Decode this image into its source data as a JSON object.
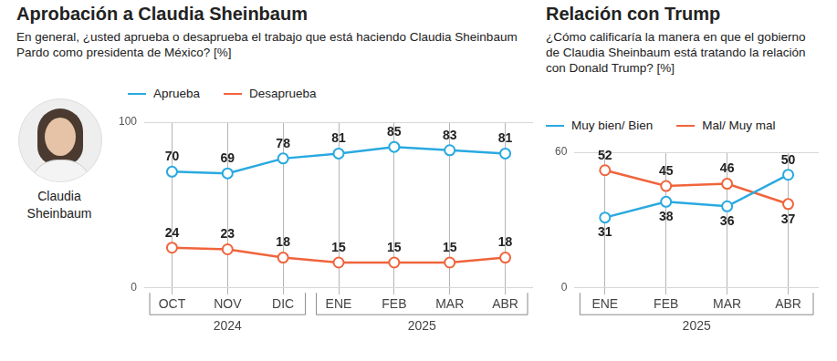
{
  "photo_caption": "Claudia Sheinbaum",
  "chart_data": [
    {
      "type": "line",
      "title": "Aprobación a Claudia Sheinbaum",
      "subtitle": "En general, ¿usted aprueba o desaprueba el trabajo que está haciendo Claudia Sheinbaum Pardo como presidenta de México? [%]",
      "categories": [
        "OCT",
        "NOV",
        "DIC",
        "ENE",
        "FEB",
        "MAR",
        "ABR"
      ],
      "groups": [
        {
          "label": "2024",
          "categories": [
            "OCT",
            "NOV",
            "DIC"
          ]
        },
        {
          "label": "2025",
          "categories": [
            "ENE",
            "FEB",
            "MAR",
            "ABR"
          ]
        }
      ],
      "series": [
        {
          "name": "Aprueba",
          "color": "#29a9e0",
          "values": [
            70,
            69,
            78,
            81,
            85,
            83,
            81
          ]
        },
        {
          "name": "Desaprueba",
          "color": "#f0643c",
          "values": [
            24,
            23,
            18,
            15,
            15,
            15,
            18
          ]
        }
      ],
      "ylim": [
        0,
        100
      ],
      "yticks": [
        0,
        100
      ],
      "grid": true,
      "data_labels": true,
      "marker": "circle",
      "legend": "top"
    },
    {
      "type": "line",
      "title": "Relación con Trump",
      "subtitle": "¿Cómo calificaría la manera en que el gobierno de Claudia Sheinbaum está tratando la relación con Donald Trump? [%]",
      "categories": [
        "ENE",
        "FEB",
        "MAR",
        "ABR"
      ],
      "groups": [
        {
          "label": "2025",
          "categories": [
            "ENE",
            "FEB",
            "MAR",
            "ABR"
          ]
        }
      ],
      "series": [
        {
          "name": "Muy bien/ Bien",
          "color": "#29a9e0",
          "values": [
            31,
            38,
            36,
            50
          ]
        },
        {
          "name": "Mal/ Muy mal",
          "color": "#f0643c",
          "values": [
            52,
            45,
            46,
            37
          ]
        }
      ],
      "ylim": [
        0,
        60
      ],
      "yticks": [
        0,
        60
      ],
      "grid": true,
      "data_labels": true,
      "marker": "circle",
      "legend": "top"
    }
  ]
}
